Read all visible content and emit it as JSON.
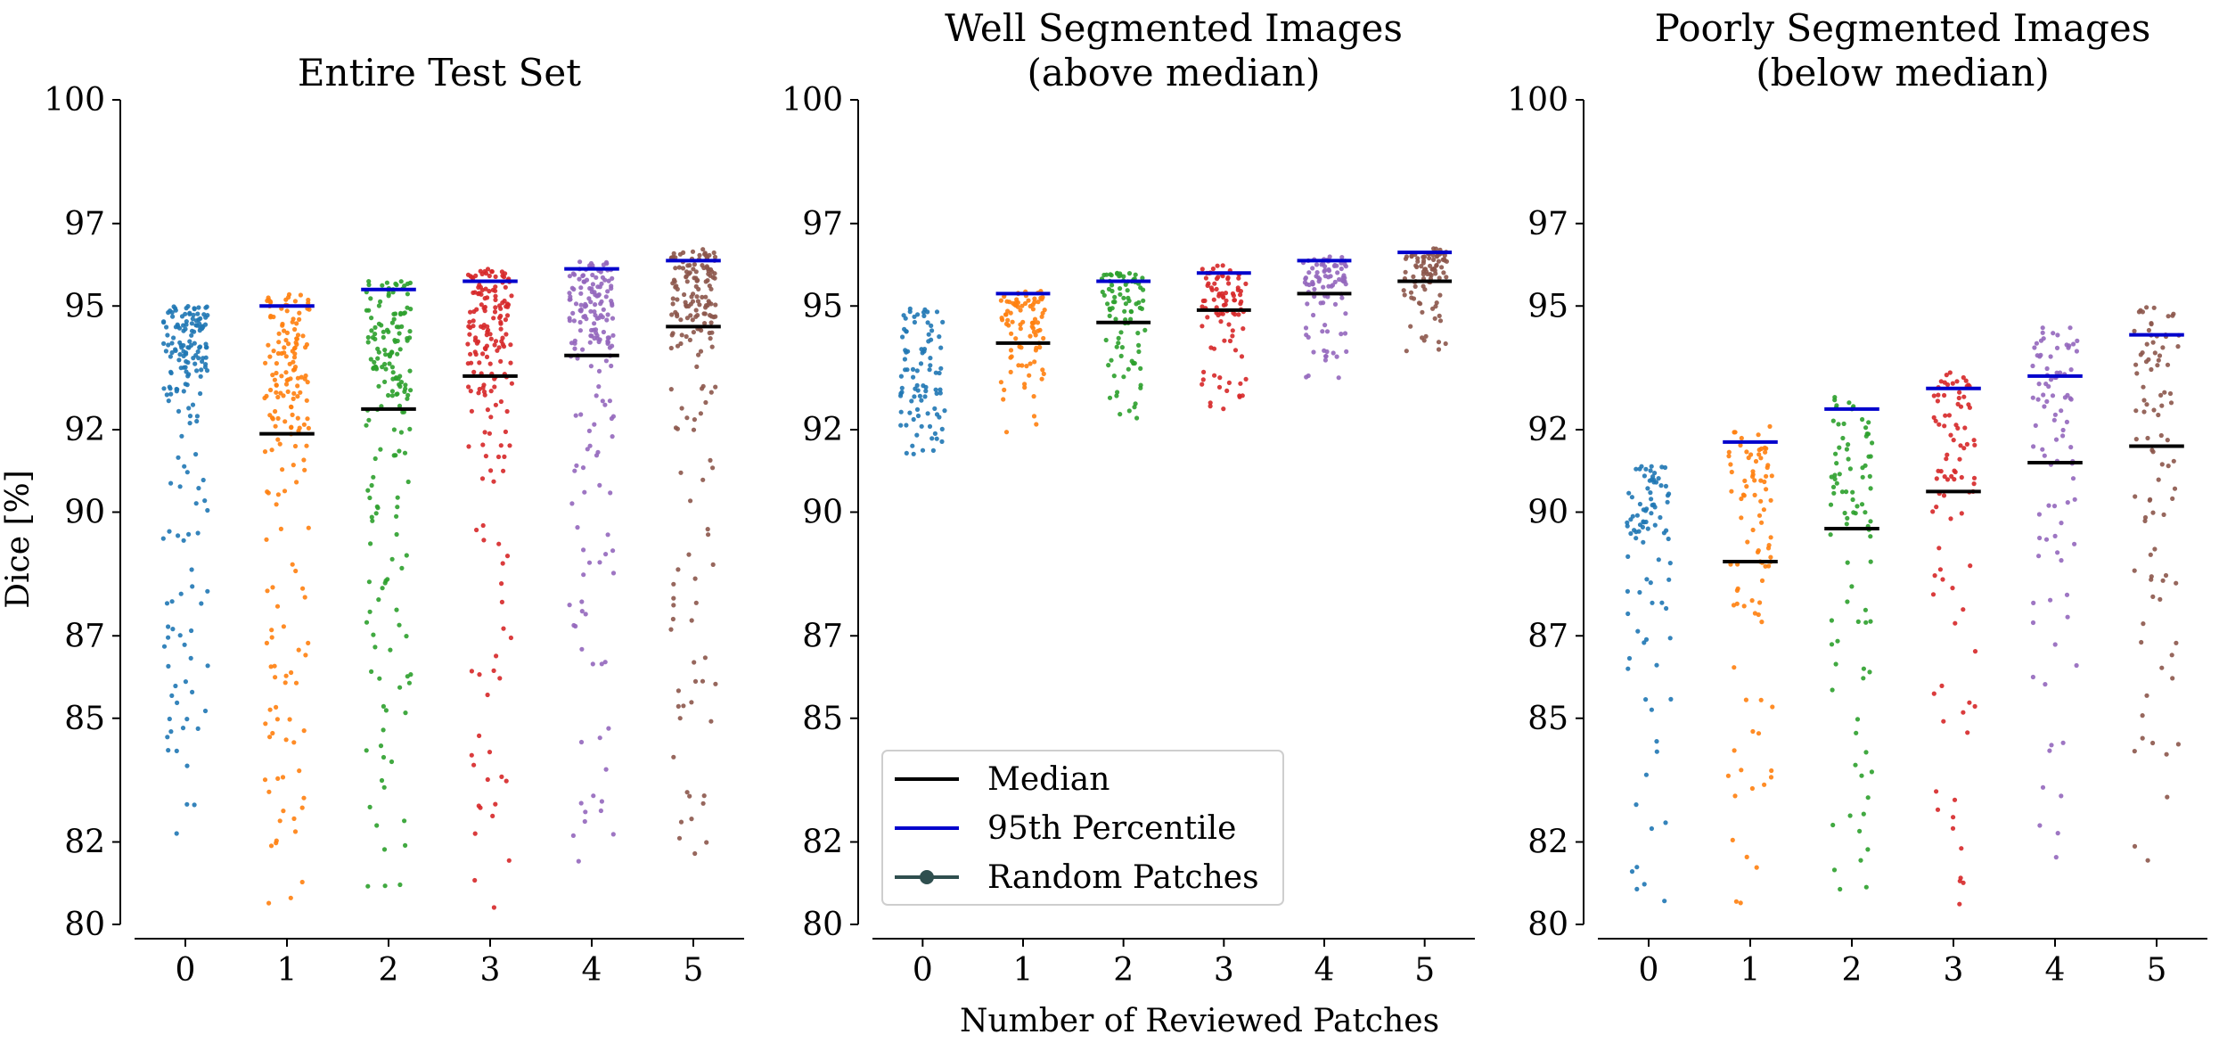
{
  "figure": {
    "shared_ylabel": "Dice [%]",
    "shared_xlabel": "Number of Reviewed Patches",
    "legend": {
      "placement": "lower-left of middle panel",
      "items": [
        {
          "label": "Median",
          "color": "#000000",
          "kind": "line"
        },
        {
          "label": "95th Percentile",
          "color": "#0000cc",
          "kind": "line"
        },
        {
          "label": "Random Patches",
          "color": "#2f4f4f",
          "kind": "line-marker"
        }
      ]
    }
  },
  "chart_data": [
    {
      "type": "scatter",
      "title_lines": [
        "Entire Test Set"
      ],
      "x": [
        0,
        1,
        2,
        3,
        4,
        5
      ],
      "categories": [
        "0",
        "1",
        "2",
        "3",
        "4",
        "5"
      ],
      "xlabel": "",
      "ylabel": "Dice [%]",
      "ylim": [
        80,
        100
      ],
      "yticks": [
        80,
        82,
        85,
        87,
        90,
        92,
        95,
        97,
        100
      ],
      "grid": false,
      "series_colors": [
        "#1f77b4",
        "#ff7f0e",
        "#2ca02c",
        "#d62728",
        "#9467bd",
        "#8c564b"
      ],
      "median": [
        null,
        91.9,
        92.5,
        93.3,
        93.8,
        94.5
      ],
      "p95": [
        null,
        95.0,
        95.4,
        95.6,
        95.9,
        96.1
      ],
      "points_per_group": 180,
      "range_min": [
        80.5,
        80.3,
        80.8,
        80.3,
        81.5,
        81.2
      ],
      "range_max": [
        95.0,
        95.3,
        95.6,
        95.9,
        96.1,
        96.4
      ]
    },
    {
      "type": "scatter",
      "title_lines": [
        "Well Segmented Images",
        "(above median)"
      ],
      "x": [
        0,
        1,
        2,
        3,
        4,
        5
      ],
      "categories": [
        "0",
        "1",
        "2",
        "3",
        "4",
        "5"
      ],
      "xlabel": "Number of Reviewed Patches",
      "ylabel": "",
      "ylim": [
        80,
        100
      ],
      "yticks": [
        80,
        82,
        85,
        87,
        90,
        92,
        95,
        97,
        100
      ],
      "grid": false,
      "series_colors": [
        "#1f77b4",
        "#ff7f0e",
        "#2ca02c",
        "#d62728",
        "#9467bd",
        "#8c564b"
      ],
      "median": [
        null,
        94.1,
        94.6,
        94.9,
        95.3,
        95.6
      ],
      "p95": [
        null,
        95.3,
        95.6,
        95.8,
        96.1,
        96.3
      ],
      "points_per_group": 90,
      "range_min": [
        91.3,
        91.9,
        92.2,
        92.5,
        93.2,
        93.3
      ],
      "range_max": [
        95.0,
        95.4,
        95.8,
        96.0,
        96.2,
        96.4
      ]
    },
    {
      "type": "scatter",
      "title_lines": [
        "Poorly Segmented Images",
        "(below median)"
      ],
      "x": [
        0,
        1,
        2,
        3,
        4,
        5
      ],
      "categories": [
        "0",
        "1",
        "2",
        "3",
        "4",
        "5"
      ],
      "xlabel": "",
      "ylabel": "",
      "ylim": [
        80,
        100
      ],
      "yticks": [
        80,
        82,
        85,
        87,
        90,
        92,
        95,
        97,
        100
      ],
      "grid": false,
      "series_colors": [
        "#1f77b4",
        "#ff7f0e",
        "#2ca02c",
        "#d62728",
        "#9467bd",
        "#8c564b"
      ],
      "median": [
        null,
        88.8,
        89.6,
        90.5,
        91.2,
        91.6
      ],
      "p95": [
        null,
        91.7,
        92.5,
        93.0,
        93.3,
        94.3
      ],
      "points_per_group": 90,
      "range_min": [
        80.5,
        80.3,
        80.8,
        80.3,
        81.5,
        81.2
      ],
      "range_max": [
        91.2,
        92.2,
        92.8,
        93.4,
        94.5,
        95.0
      ]
    }
  ]
}
